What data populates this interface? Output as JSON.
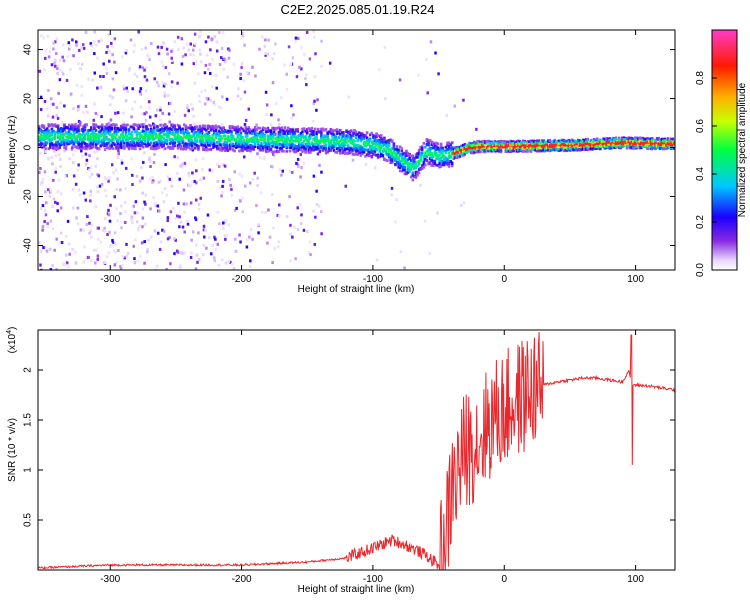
{
  "title": "C2E2.2025.085.01.19.R24",
  "colors": {
    "snr_line": "#e8282c",
    "axis": "#000000"
  },
  "chart_data": [
    {
      "type": "heatmap",
      "xlabel": "Height of straight line (km)",
      "ylabel": "Frequency (Hz)",
      "xlim": [
        -355,
        130
      ],
      "ylim": [
        -50,
        48
      ],
      "xticks": [
        -300,
        -200,
        -100,
        0,
        100
      ],
      "yticks": [
        -40,
        -20,
        0,
        20,
        40
      ],
      "grid": false,
      "colorbar": {
        "label": "Normalized spectral amplitude",
        "range": [
          0,
          1
        ],
        "ticks": [
          0.0,
          0.2,
          0.4,
          0.6,
          0.8
        ],
        "colormap": "rainbow (white-violet-blue-cyan-green-yellow-red-magenta)"
      },
      "ridge": [
        {
          "x": -350,
          "f": 5
        },
        {
          "x": -300,
          "f": 5
        },
        {
          "x": -250,
          "f": 5
        },
        {
          "x": -200,
          "f": 4
        },
        {
          "x": -150,
          "f": 3.5
        },
        {
          "x": -120,
          "f": 3
        },
        {
          "x": -100,
          "f": 1.5
        },
        {
          "x": -90,
          "f": 0
        },
        {
          "x": -80,
          "f": -4
        },
        {
          "x": -70,
          "f": -8
        },
        {
          "x": -60,
          "f": -1
        },
        {
          "x": -50,
          "f": -3
        },
        {
          "x": -40,
          "f": -2
        },
        {
          "x": -30,
          "f": 0
        },
        {
          "x": -20,
          "f": 1
        },
        {
          "x": 0,
          "f": 1
        },
        {
          "x": 50,
          "f": 1.5
        },
        {
          "x": 90,
          "f": 2.5
        },
        {
          "x": 130,
          "f": 2
        }
      ]
    },
    {
      "type": "line",
      "xlabel": "Height of straight line (km)",
      "ylabel": "SNR (10 * v/v)",
      "y_multiplier": "(x10",
      "y_multiplier_exp": "4",
      "xlim": [
        -355,
        130
      ],
      "ylim": [
        0,
        2.4
      ],
      "xticks": [
        -300,
        -200,
        -100,
        0,
        100
      ],
      "yticks": [
        0.5,
        1.0,
        1.5,
        2.0
      ],
      "grid": false,
      "series": [
        {
          "values_x": [
            -355,
            -300,
            -250,
            -200,
            -150,
            -120,
            -100,
            -85,
            -75,
            -60,
            -50,
            -45,
            -40,
            -35,
            -30,
            -20,
            -10,
            0,
            10,
            20,
            30,
            40,
            50,
            60,
            70,
            80,
            90,
            95,
            97,
            100,
            110,
            120,
            130
          ],
          "values_y": [
            0.02,
            0.05,
            0.05,
            0.05,
            0.08,
            0.12,
            0.22,
            0.3,
            0.25,
            0.15,
            0.05,
            0.3,
            0.8,
            1.0,
            1.2,
            1.3,
            1.5,
            1.6,
            1.7,
            1.8,
            1.85,
            1.88,
            1.9,
            1.92,
            1.92,
            1.9,
            1.88,
            2.0,
            1.85,
            1.85,
            1.84,
            1.82,
            1.8
          ]
        }
      ]
    }
  ]
}
